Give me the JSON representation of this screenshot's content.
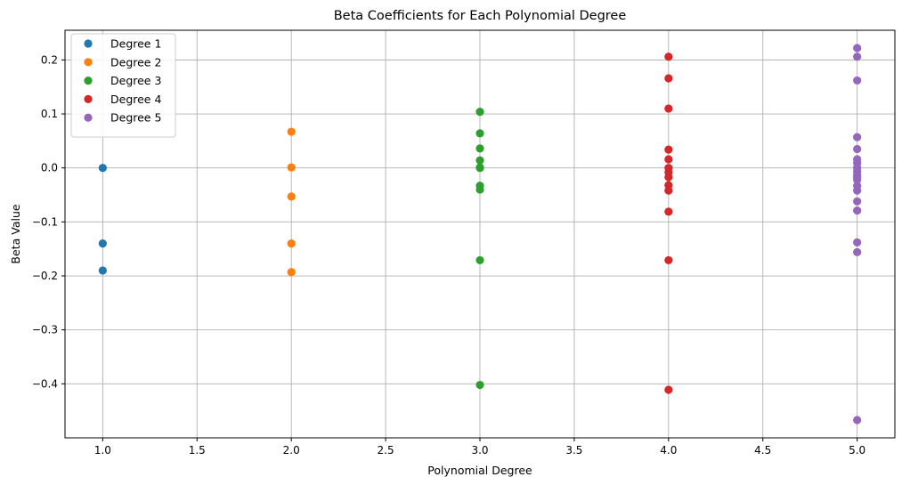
{
  "chart_data": {
    "type": "scatter",
    "title": "Beta Coefficients for Each Polynomial Degree",
    "xlabel": "Polynomial Degree",
    "ylabel": "Beta Value",
    "xlim": [
      0.8,
      5.2
    ],
    "ylim": [
      -0.5,
      0.255
    ],
    "xticks": [
      1.0,
      1.5,
      2.0,
      2.5,
      3.0,
      3.5,
      4.0,
      4.5,
      5.0
    ],
    "xtick_labels": [
      "1.0",
      "1.5",
      "2.0",
      "2.5",
      "3.0",
      "3.5",
      "4.0",
      "4.5",
      "5.0"
    ],
    "yticks": [
      0.2,
      0.1,
      0.0,
      -0.1,
      -0.2,
      -0.3,
      -0.4
    ],
    "ytick_labels": [
      "0.2",
      "0.1",
      "0.0",
      "−0.1",
      "−0.2",
      "−0.3",
      "−0.4"
    ],
    "grid": true,
    "legend_position": "top-left",
    "series": [
      {
        "name": "Degree 1",
        "color": "#1f77b4",
        "x": [
          1,
          1,
          1
        ],
        "y": [
          0.0,
          -0.14,
          -0.19
        ]
      },
      {
        "name": "Degree 2",
        "color": "#ff7f0e",
        "x": [
          2,
          2,
          2,
          2,
          2
        ],
        "y": [
          0.067,
          0.001,
          -0.053,
          -0.14,
          -0.193
        ]
      },
      {
        "name": "Degree 3",
        "color": "#2ca02c",
        "x": [
          3,
          3,
          3,
          3,
          3,
          3,
          3,
          3,
          3,
          3
        ],
        "y": [
          0.104,
          0.064,
          0.036,
          0.014,
          0.001,
          -0.033,
          -0.04,
          -0.171,
          -0.402,
          0.0
        ]
      },
      {
        "name": "Degree 4",
        "color": "#d62728",
        "x": [
          4,
          4,
          4,
          4,
          4,
          4,
          4,
          4,
          4,
          4,
          4,
          4,
          4
        ],
        "y": [
          0.206,
          0.166,
          0.11,
          0.034,
          0.016,
          0.0,
          -0.008,
          -0.017,
          -0.032,
          -0.042,
          -0.081,
          -0.171,
          -0.411
        ]
      },
      {
        "name": "Degree 5",
        "color": "#9467bd",
        "x": [
          5,
          5,
          5,
          5,
          5,
          5,
          5,
          5,
          5,
          5,
          5,
          5,
          5,
          5,
          5,
          5,
          5,
          5,
          5
        ],
        "y": [
          0.222,
          0.206,
          0.162,
          0.057,
          0.035,
          0.016,
          0.009,
          0.0,
          -0.007,
          -0.014,
          -0.022,
          -0.033,
          -0.042,
          -0.062,
          -0.079,
          -0.138,
          -0.156,
          -0.467,
          -0.018
        ]
      }
    ]
  }
}
